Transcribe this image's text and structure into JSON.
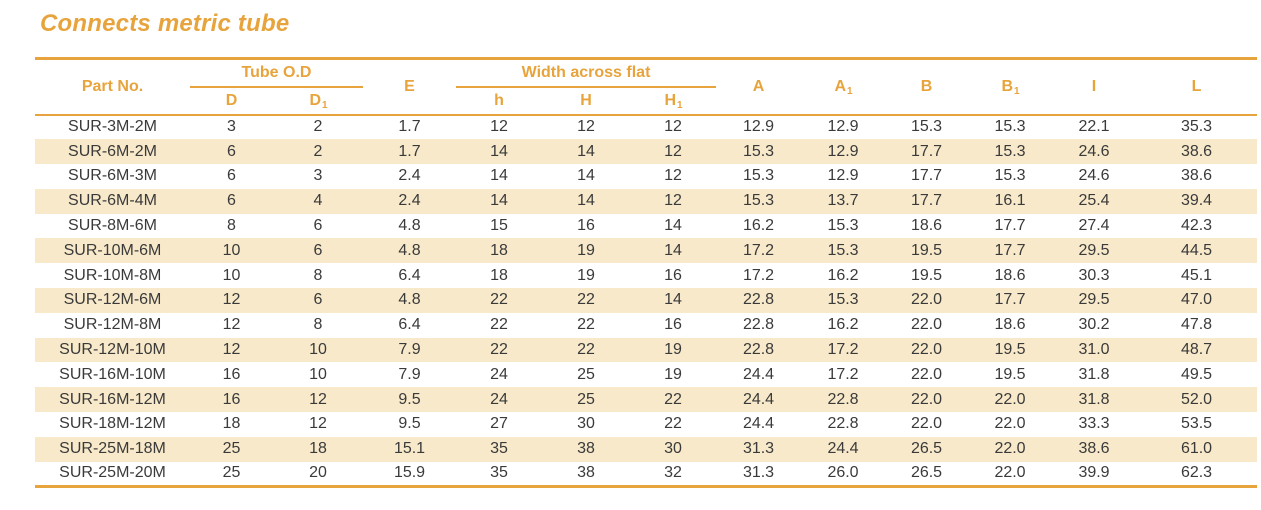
{
  "page": {
    "title": "Connects metric tube"
  },
  "colors": {
    "accent": "#e8a43c",
    "row_shade": "#f7e9ca",
    "text": "#3a3a3a"
  },
  "table": {
    "groups": [
      {
        "label": "Tube O.D"
      },
      {
        "label": "Width across flat"
      }
    ],
    "columns": [
      {
        "label": "Part No.",
        "sub": ""
      },
      {
        "label": "D",
        "sub": ""
      },
      {
        "label": "D",
        "sub": "1"
      },
      {
        "label": "E",
        "sub": ""
      },
      {
        "label": "h",
        "sub": ""
      },
      {
        "label": "H",
        "sub": ""
      },
      {
        "label": "H",
        "sub": "1"
      },
      {
        "label": "A",
        "sub": ""
      },
      {
        "label": "A",
        "sub": "1"
      },
      {
        "label": "B",
        "sub": ""
      },
      {
        "label": "B",
        "sub": "1"
      },
      {
        "label": "I",
        "sub": ""
      },
      {
        "label": "L",
        "sub": ""
      }
    ],
    "rows": [
      [
        "SUR-3M-2M",
        "3",
        "2",
        "1.7",
        "12",
        "12",
        "12",
        "12.9",
        "12.9",
        "15.3",
        "15.3",
        "22.1",
        "35.3"
      ],
      [
        "SUR-6M-2M",
        "6",
        "2",
        "1.7",
        "14",
        "14",
        "12",
        "15.3",
        "12.9",
        "17.7",
        "15.3",
        "24.6",
        "38.6"
      ],
      [
        "SUR-6M-3M",
        "6",
        "3",
        "2.4",
        "14",
        "14",
        "12",
        "15.3",
        "12.9",
        "17.7",
        "15.3",
        "24.6",
        "38.6"
      ],
      [
        "SUR-6M-4M",
        "6",
        "4",
        "2.4",
        "14",
        "14",
        "12",
        "15.3",
        "13.7",
        "17.7",
        "16.1",
        "25.4",
        "39.4"
      ],
      [
        "SUR-8M-6M",
        "8",
        "6",
        "4.8",
        "15",
        "16",
        "14",
        "16.2",
        "15.3",
        "18.6",
        "17.7",
        "27.4",
        "42.3"
      ],
      [
        "SUR-10M-6M",
        "10",
        "6",
        "4.8",
        "18",
        "19",
        "14",
        "17.2",
        "15.3",
        "19.5",
        "17.7",
        "29.5",
        "44.5"
      ],
      [
        "SUR-10M-8M",
        "10",
        "8",
        "6.4",
        "18",
        "19",
        "16",
        "17.2",
        "16.2",
        "19.5",
        "18.6",
        "30.3",
        "45.1"
      ],
      [
        "SUR-12M-6M",
        "12",
        "6",
        "4.8",
        "22",
        "22",
        "14",
        "22.8",
        "15.3",
        "22.0",
        "17.7",
        "29.5",
        "47.0"
      ],
      [
        "SUR-12M-8M",
        "12",
        "8",
        "6.4",
        "22",
        "22",
        "16",
        "22.8",
        "16.2",
        "22.0",
        "18.6",
        "30.2",
        "47.8"
      ],
      [
        "SUR-12M-10M",
        "12",
        "10",
        "7.9",
        "22",
        "22",
        "19",
        "22.8",
        "17.2",
        "22.0",
        "19.5",
        "31.0",
        "48.7"
      ],
      [
        "SUR-16M-10M",
        "16",
        "10",
        "7.9",
        "24",
        "25",
        "19",
        "24.4",
        "17.2",
        "22.0",
        "19.5",
        "31.8",
        "49.5"
      ],
      [
        "SUR-16M-12M",
        "16",
        "12",
        "9.5",
        "24",
        "25",
        "22",
        "24.4",
        "22.8",
        "22.0",
        "22.0",
        "31.8",
        "52.0"
      ],
      [
        "SUR-18M-12M",
        "18",
        "12",
        "9.5",
        "27",
        "30",
        "22",
        "24.4",
        "22.8",
        "22.0",
        "22.0",
        "33.3",
        "53.5"
      ],
      [
        "SUR-25M-18M",
        "25",
        "18",
        "15.1",
        "35",
        "38",
        "30",
        "31.3",
        "24.4",
        "26.5",
        "22.0",
        "38.6",
        "61.0"
      ],
      [
        "SUR-25M-20M",
        "25",
        "20",
        "15.9",
        "35",
        "38",
        "32",
        "31.3",
        "26.0",
        "26.5",
        "22.0",
        "39.9",
        "62.3"
      ]
    ]
  }
}
